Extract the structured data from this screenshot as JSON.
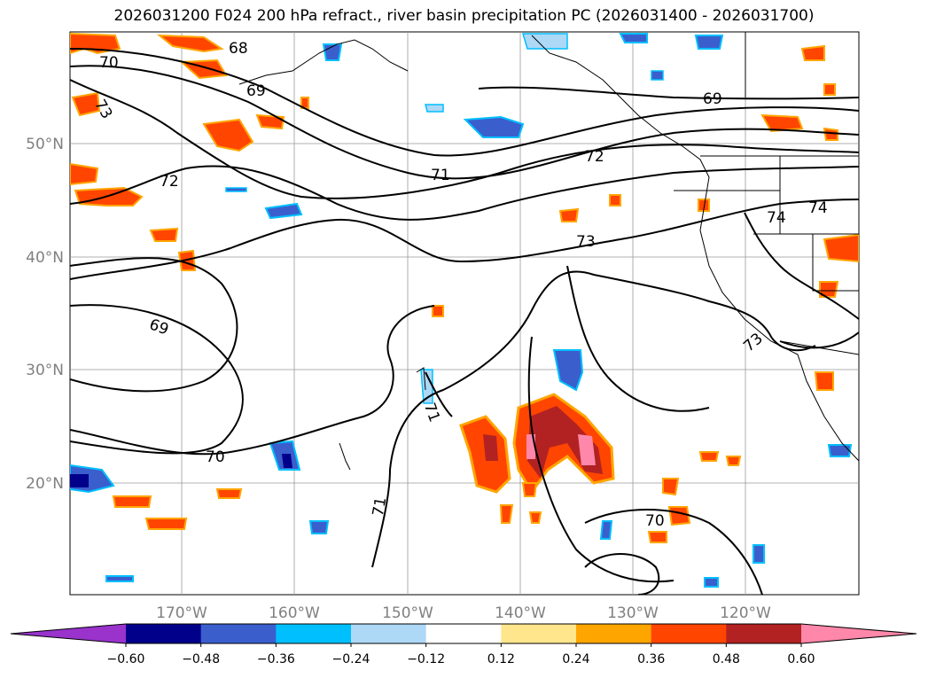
{
  "title": "2026031200 F024 200 hPa refract., river basin precipitation PC (2026031400 - 2026031700)",
  "map": {
    "lat_labels": [
      "50°N",
      "40°N",
      "30°N",
      "20°N"
    ],
    "lon_labels": [
      "170°W",
      "160°W",
      "150°W",
      "140°W",
      "130°W",
      "120°W"
    ],
    "contour_labels": [
      "70",
      "68",
      "73",
      "72",
      "69",
      "71",
      "72",
      "69",
      "74",
      "74",
      "73",
      "69",
      "73",
      "71",
      "70",
      "71",
      "70"
    ]
  },
  "colorbar": {
    "ticks": [
      "−0.60",
      "−0.48",
      "−0.36",
      "−0.24",
      "−0.12",
      "0.12",
      "0.24",
      "0.36",
      "0.48",
      "0.60"
    ],
    "colors": [
      "#9933cc",
      "#00008b",
      "#3a5fcd",
      "#00bfff",
      "#add8f6",
      "#ffffff",
      "#ffe68c",
      "#ffa500",
      "#ff4500",
      "#b22222",
      "#ff88aa"
    ]
  },
  "colors": {
    "contour": "#000000",
    "grid": "#999999",
    "coast": "#000000"
  }
}
